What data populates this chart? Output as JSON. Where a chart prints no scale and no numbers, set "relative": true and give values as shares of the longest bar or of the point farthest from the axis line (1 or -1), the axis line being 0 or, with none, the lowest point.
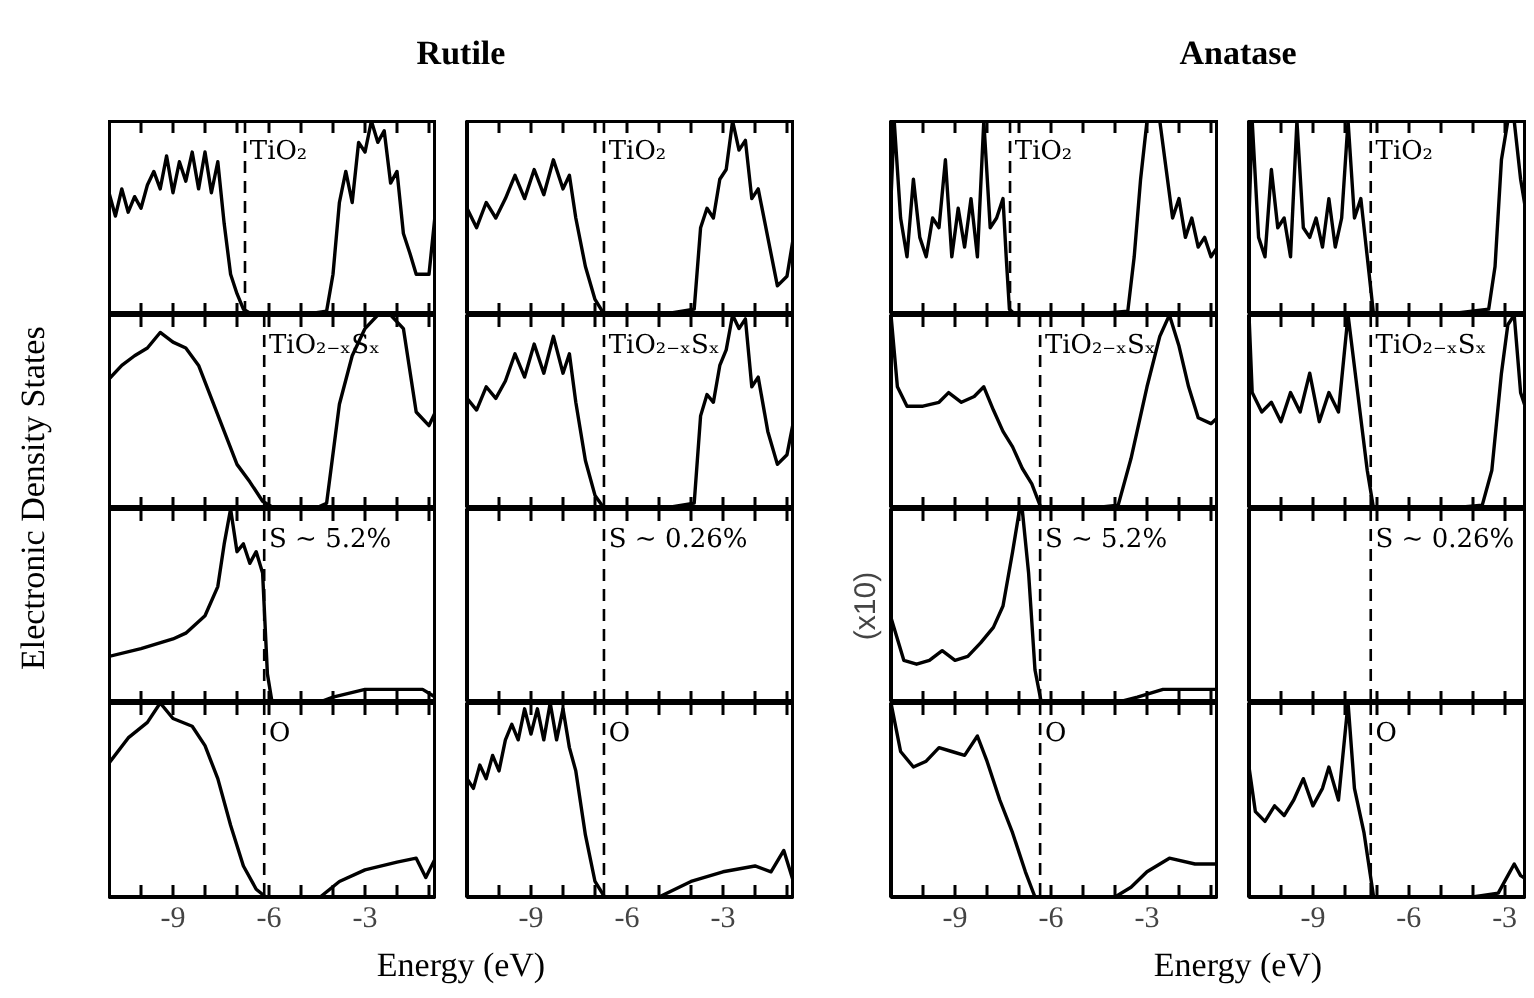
{
  "chart_data": [
    {
      "type": "line",
      "relative": true,
      "title": "Rutile",
      "ylabel": "Electronic Density States",
      "color": "#000000",
      "annotations": [
        "TiO₂"
      ],
      "xlim": [
        -11,
        -0.75
      ],
      "xticks": [
        {
          "value": -10,
          "label": null
        },
        -9,
        {
          "value": -8,
          "label": null
        },
        {
          "value": -7,
          "label": null
        },
        -6,
        {
          "value": -5,
          "label": null
        },
        {
          "value": -4,
          "label": null
        },
        -3,
        {
          "value": -2,
          "label": null
        },
        {
          "value": -1,
          "label": null
        }
      ],
      "tick_labels": false,
      "ref_lines": [
        {
          "axis": "x",
          "value": -6.75,
          "line_style": "dashed"
        }
      ],
      "x": [
        -11,
        -10.8,
        -10.6,
        -10.4,
        -10.2,
        -10,
        -9.8,
        -9.6,
        -9.4,
        -9.2,
        -9,
        -8.8,
        -8.6,
        -8.4,
        -8.2,
        -8,
        -7.8,
        -7.6,
        -7.4,
        -7.2,
        -7,
        -6.8,
        -6.5,
        -6,
        -5,
        -4.2,
        -4,
        -3.8,
        -3.6,
        -3.4,
        -3.2,
        -3,
        -2.8,
        -2.6,
        -2.4,
        -2.2,
        -2,
        -1.8,
        -1.6,
        -1.4,
        -1.2,
        -1,
        -0.8
      ],
      "values": [
        0.63,
        0.51,
        0.65,
        0.53,
        0.61,
        0.55,
        0.67,
        0.74,
        0.65,
        0.82,
        0.63,
        0.79,
        0.69,
        0.84,
        0.65,
        0.84,
        0.63,
        0.79,
        0.47,
        0.21,
        0.11,
        0.03,
        0,
        0,
        0,
        0.02,
        0.21,
        0.58,
        0.74,
        0.58,
        0.89,
        0.84,
        1,
        0.89,
        0.95,
        0.68,
        0.74,
        0.42,
        0.32,
        0.21,
        0.21,
        0.21,
        0.53
      ]
    },
    {
      "type": "line",
      "relative": true,
      "color": "#000000",
      "annotations": [
        "TiO₂"
      ],
      "xlim": [
        -11,
        -0.75
      ],
      "xticks": [
        {
          "value": -10,
          "label": null
        },
        -9,
        {
          "value": -8,
          "label": null
        },
        {
          "value": -7,
          "label": null
        },
        -6,
        {
          "value": -5,
          "label": null
        },
        {
          "value": -4,
          "label": null
        },
        -3,
        {
          "value": -2,
          "label": null
        },
        {
          "value": -1,
          "label": null
        }
      ],
      "tick_labels": false,
      "ref_lines": [
        {
          "axis": "x",
          "value": -6.72,
          "line_style": "dashed"
        }
      ],
      "x": [
        -11,
        -10.7,
        -10.4,
        -10.1,
        -9.8,
        -9.5,
        -9.2,
        -8.9,
        -8.6,
        -8.3,
        -8,
        -7.8,
        -7.6,
        -7.3,
        -7,
        -6.7,
        -5,
        -3.9,
        -3.7,
        -3.5,
        -3.3,
        -3.1,
        -2.9,
        -2.7,
        -2.5,
        -2.3,
        -2.1,
        -1.9,
        -1.6,
        -1.3,
        -1,
        -0.8
      ],
      "values": [
        0.55,
        0.45,
        0.58,
        0.5,
        0.6,
        0.72,
        0.6,
        0.75,
        0.62,
        0.8,
        0.65,
        0.72,
        0.5,
        0.25,
        0.08,
        0,
        0,
        0.03,
        0.45,
        0.55,
        0.5,
        0.7,
        0.75,
        1,
        0.85,
        0.9,
        0.6,
        0.65,
        0.4,
        0.15,
        0.2,
        0.4
      ]
    },
    {
      "type": "line",
      "relative": true,
      "title": "Anatase",
      "color": "#000000",
      "annotations": [
        "TiO₂"
      ],
      "xlim": [
        -11,
        -0.75
      ],
      "xticks": [
        {
          "value": -10,
          "label": null
        },
        -9,
        {
          "value": -8,
          "label": null
        },
        {
          "value": -7,
          "label": null
        },
        -6,
        {
          "value": -5,
          "label": null
        },
        {
          "value": -4,
          "label": null
        },
        -3,
        {
          "value": -2,
          "label": null
        },
        {
          "value": -1,
          "label": null
        }
      ],
      "tick_labels": false,
      "ref_lines": [
        {
          "axis": "x",
          "value": -7.28,
          "line_style": "dashed"
        }
      ],
      "x": [
        -11,
        -10.9,
        -10.7,
        -10.5,
        -10.3,
        -10.1,
        -9.9,
        -9.7,
        -9.5,
        -9.3,
        -9.1,
        -8.9,
        -8.7,
        -8.5,
        -8.3,
        -8.1,
        -7.9,
        -7.7,
        -7.5,
        -7.4,
        -7.3,
        -7.1,
        -5,
        -3.6,
        -3.4,
        -3.2,
        -3.0,
        -2.8,
        -2.6,
        -2.4,
        -2.2,
        -2.0,
        -1.8,
        -1.6,
        -1.4,
        -1.2,
        -1.0,
        -0.8
      ],
      "values": [
        0.6,
        1.0,
        0.5,
        0.3,
        0.7,
        0.4,
        0.3,
        0.5,
        0.45,
        0.8,
        0.3,
        0.55,
        0.35,
        0.6,
        0.3,
        1.0,
        0.45,
        0.5,
        0.6,
        0.3,
        0.03,
        0,
        0,
        0.02,
        0.3,
        0.7,
        1.0,
        1.0,
        1.0,
        0.75,
        0.5,
        0.6,
        0.4,
        0.5,
        0.35,
        0.4,
        0.3,
        0.35
      ]
    },
    {
      "type": "line",
      "relative": true,
      "color": "#000000",
      "annotations": [
        "TiO₂"
      ],
      "xlim": [
        -11,
        -2.3
      ],
      "xticks": [
        {
          "value": -10,
          "label": null
        },
        -9,
        {
          "value": -8,
          "label": null
        },
        {
          "value": -7,
          "label": null
        },
        -6,
        {
          "value": -5,
          "label": null
        },
        {
          "value": -4,
          "label": null
        },
        -3
      ],
      "tick_labels": false,
      "ref_lines": [
        {
          "axis": "x",
          "value": -7.19,
          "line_style": "dashed"
        }
      ],
      "x": [
        -11,
        -10.9,
        -10.7,
        -10.5,
        -10.3,
        -10.1,
        -9.9,
        -9.7,
        -9.5,
        -9.3,
        -9.1,
        -8.9,
        -8.7,
        -8.5,
        -8.3,
        -8.1,
        -7.9,
        -7.7,
        -7.5,
        -7.3,
        -7.1,
        -5,
        -3.5,
        -3.3,
        -3.1,
        -2.9,
        -2.7,
        -2.5,
        -2.3
      ],
      "values": [
        0.5,
        1.0,
        0.4,
        0.3,
        0.75,
        0.45,
        0.5,
        0.3,
        1.0,
        0.45,
        0.4,
        0.5,
        0.35,
        0.6,
        0.35,
        0.5,
        1.0,
        0.5,
        0.6,
        0.3,
        0,
        0,
        0.03,
        0.25,
        0.8,
        1.0,
        1.0,
        0.7,
        0.5
      ]
    },
    {
      "type": "line",
      "relative": true,
      "color": "#000000",
      "annotations": [
        "TiO₂₋ₓSₓ"
      ],
      "xlim": [
        -11,
        -0.75
      ],
      "xticks": [
        {
          "value": -10,
          "label": null
        },
        -9,
        {
          "value": -8,
          "label": null
        },
        {
          "value": -7,
          "label": null
        },
        -6,
        {
          "value": -5,
          "label": null
        },
        {
          "value": -4,
          "label": null
        },
        -3,
        {
          "value": -2,
          "label": null
        },
        {
          "value": -1,
          "label": null
        }
      ],
      "tick_labels": false,
      "ref_lines": [
        {
          "axis": "x",
          "value": -6.15,
          "line_style": "dashed"
        }
      ],
      "x": [
        -11,
        -10.6,
        -10.2,
        -9.8,
        -9.4,
        -9.0,
        -8.6,
        -8.2,
        -7.8,
        -7.4,
        -7.0,
        -6.6,
        -6.2,
        -5.8,
        -5.4,
        -5.0,
        -4.6,
        -4.2,
        -3.8,
        -3.4,
        -3.0,
        -2.6,
        -2.2,
        -1.8,
        -1.4,
        -1.0,
        -0.8
      ],
      "values": [
        0.67,
        0.74,
        0.79,
        0.83,
        0.91,
        0.86,
        0.83,
        0.74,
        0.57,
        0.4,
        0.23,
        0.14,
        0.04,
        0,
        0,
        0,
        0,
        0.03,
        0.54,
        0.79,
        0.93,
        1,
        1,
        0.93,
        0.5,
        0.43,
        0.5
      ]
    },
    {
      "type": "line",
      "relative": true,
      "color": "#000000",
      "annotations": [
        "TiO₂₋ₓSₓ"
      ],
      "xlim": [
        -11,
        -0.75
      ],
      "xticks": [
        {
          "value": -10,
          "label": null
        },
        -9,
        {
          "value": -8,
          "label": null
        },
        {
          "value": -7,
          "label": null
        },
        -6,
        {
          "value": -5,
          "label": null
        },
        {
          "value": -4,
          "label": null
        },
        -3,
        {
          "value": -2,
          "label": null
        },
        {
          "value": -1,
          "label": null
        }
      ],
      "tick_labels": false,
      "ref_lines": [
        {
          "axis": "x",
          "value": -6.72,
          "line_style": "dashed"
        }
      ],
      "x": [
        -11,
        -10.7,
        -10.4,
        -10.1,
        -9.8,
        -9.5,
        -9.2,
        -8.9,
        -8.6,
        -8.3,
        -8,
        -7.8,
        -7.6,
        -7.3,
        -7,
        -6.7,
        -5,
        -3.9,
        -3.7,
        -3.5,
        -3.3,
        -3.1,
        -2.9,
        -2.7,
        -2.5,
        -2.3,
        -2.1,
        -1.9,
        -1.6,
        -1.3,
        -1,
        -0.8
      ],
      "values": [
        0.57,
        0.51,
        0.63,
        0.57,
        0.66,
        0.8,
        0.68,
        0.85,
        0.7,
        0.89,
        0.7,
        0.8,
        0.55,
        0.25,
        0.07,
        0,
        0,
        0.03,
        0.48,
        0.59,
        0.55,
        0.74,
        0.82,
        1,
        0.93,
        0.98,
        0.63,
        0.68,
        0.4,
        0.23,
        0.28,
        0.45
      ]
    },
    {
      "type": "line",
      "relative": true,
      "color": "#000000",
      "annotations": [
        "TiO₂₋ₓSₓ"
      ],
      "xlim": [
        -11,
        -0.75
      ],
      "xticks": [
        {
          "value": -10,
          "label": null
        },
        -9,
        {
          "value": -8,
          "label": null
        },
        {
          "value": -7,
          "label": null
        },
        -6,
        {
          "value": -5,
          "label": null
        },
        {
          "value": -4,
          "label": null
        },
        -3,
        {
          "value": -2,
          "label": null
        },
        {
          "value": -1,
          "label": null
        }
      ],
      "tick_labels": false,
      "ref_lines": [
        {
          "axis": "x",
          "value": -6.34,
          "line_style": "dashed"
        }
      ],
      "x": [
        -11,
        -10.8,
        -10.5,
        -10,
        -9.5,
        -9.2,
        -8.8,
        -8.4,
        -8.1,
        -7.8,
        -7.5,
        -7.2,
        -6.9,
        -6.6,
        -6.3,
        -5,
        -3.9,
        -3.5,
        -3.0,
        -2.6,
        -2.3,
        -2.0,
        -1.7,
        -1.4,
        -1.0,
        -0.8
      ],
      "values": [
        1,
        0.63,
        0.53,
        0.53,
        0.55,
        0.6,
        0.55,
        0.58,
        0.63,
        0.51,
        0.4,
        0.32,
        0.21,
        0.13,
        0,
        0,
        0.02,
        0.26,
        0.63,
        0.89,
        1,
        0.84,
        0.63,
        0.47,
        0.44,
        0.47
      ]
    },
    {
      "type": "line",
      "relative": true,
      "color": "#000000",
      "annotations": [
        "TiO₂₋ₓSₓ"
      ],
      "xlim": [
        -11,
        -2.3
      ],
      "xticks": [
        {
          "value": -10,
          "label": null
        },
        -9,
        {
          "value": -8,
          "label": null
        },
        {
          "value": -7,
          "label": null
        },
        -6,
        {
          "value": -5,
          "label": null
        },
        {
          "value": -4,
          "label": null
        },
        -3
      ],
      "tick_labels": false,
      "ref_lines": [
        {
          "axis": "x",
          "value": -7.19,
          "line_style": "dashed"
        }
      ],
      "x": [
        -11,
        -10.9,
        -10.6,
        -10.3,
        -10,
        -9.7,
        -9.4,
        -9.1,
        -8.8,
        -8.5,
        -8.2,
        -7.9,
        -7.6,
        -7.3,
        -7.1,
        -5,
        -3.7,
        -3.4,
        -3.1,
        -2.9,
        -2.7,
        -2.5,
        -2.3
      ],
      "values": [
        1.0,
        0.6,
        0.5,
        0.55,
        0.45,
        0.6,
        0.5,
        0.7,
        0.45,
        0.6,
        0.5,
        1.0,
        0.6,
        0.2,
        0,
        0,
        0.02,
        0.2,
        0.7,
        0.95,
        1.0,
        0.6,
        0.5
      ]
    },
    {
      "type": "line",
      "relative": true,
      "color": "#000000",
      "annotations": [
        "S ~ 5.2%"
      ],
      "xlim": [
        -11,
        -0.75
      ],
      "xticks": [
        {
          "value": -10,
          "label": null
        },
        -9,
        {
          "value": -8,
          "label": null
        },
        {
          "value": -7,
          "label": null
        },
        -6,
        {
          "value": -5,
          "label": null
        },
        {
          "value": -4,
          "label": null
        },
        -3,
        {
          "value": -2,
          "label": null
        },
        {
          "value": -1,
          "label": null
        }
      ],
      "tick_labels": false,
      "ref_lines": [
        {
          "axis": "x",
          "value": -6.15,
          "line_style": "dashed"
        }
      ],
      "x": [
        -11,
        -10,
        -9,
        -8.6,
        -8,
        -7.6,
        -7.4,
        -7.2,
        -7.0,
        -6.8,
        -6.6,
        -6.4,
        -6.2,
        -6.05,
        -5.9,
        -4.5,
        -4,
        -3,
        -2,
        -1.2,
        -0.8
      ],
      "values": [
        0.24,
        0.28,
        0.33,
        0.36,
        0.45,
        0.6,
        0.82,
        1,
        0.78,
        0.82,
        0.72,
        0.78,
        0.67,
        0.15,
        0,
        0,
        0.03,
        0.07,
        0.07,
        0.07,
        0.03
      ]
    },
    {
      "type": "other",
      "annotations": [
        "S ~ 0.26%"
      ]
    },
    {
      "type": "line",
      "relative": true,
      "ylabel": "(x10)",
      "color": "#000000",
      "annotations": [
        "S ~ 5.2%"
      ],
      "xlim": [
        -11,
        -0.75
      ],
      "xticks": [
        {
          "value": -10,
          "label": null
        },
        -9,
        {
          "value": -8,
          "label": null
        },
        {
          "value": -7,
          "label": null
        },
        -6,
        {
          "value": -5,
          "label": null
        },
        {
          "value": -4,
          "label": null
        },
        -3,
        {
          "value": -2,
          "label": null
        },
        {
          "value": -1,
          "label": null
        }
      ],
      "tick_labels": false,
      "ref_lines": [
        {
          "axis": "x",
          "value": -6.34,
          "line_style": "dashed"
        }
      ],
      "x": [
        -11,
        -10.6,
        -10.2,
        -9.8,
        -9.4,
        -9,
        -8.6,
        -8.2,
        -7.8,
        -7.5,
        -7.2,
        -7.0,
        -6.9,
        -6.7,
        -6.5,
        -6.3,
        -4,
        -3.3,
        -2.5,
        -1.5,
        -0.8
      ],
      "values": [
        0.44,
        0.22,
        0.2,
        0.22,
        0.27,
        0.22,
        0.24,
        0.31,
        0.39,
        0.5,
        0.78,
        0.98,
        1,
        0.67,
        0.17,
        0,
        0,
        0.03,
        0.07,
        0.07,
        0.07
      ]
    },
    {
      "type": "other",
      "annotations": [
        "S ~ 0.26%"
      ]
    },
    {
      "type": "line",
      "relative": true,
      "xlabel": "Energy (eV)",
      "color": "#000000",
      "annotations": [
        "O"
      ],
      "xlim": [
        -11,
        -0.75
      ],
      "xticks": [
        {
          "value": -10,
          "label": null
        },
        -9,
        {
          "value": -8,
          "label": null
        },
        {
          "value": -7,
          "label": null
        },
        -6,
        {
          "value": -5,
          "label": null
        },
        {
          "value": -4,
          "label": null
        },
        -3,
        {
          "value": -2,
          "label": null
        },
        {
          "value": -1,
          "label": null
        }
      ],
      "tick_labels": "x",
      "ref_lines": [
        {
          "axis": "x",
          "value": -6.15,
          "line_style": "dashed"
        }
      ],
      "x": [
        -11,
        -10.4,
        -9.8,
        -9.4,
        -9,
        -8.4,
        -8,
        -7.6,
        -7.2,
        -6.8,
        -6.4,
        -6.1,
        -4.4,
        -3.8,
        -3,
        -2,
        -1.4,
        -1.1,
        -0.8
      ],
      "values": [
        0.69,
        0.82,
        0.9,
        1,
        0.92,
        0.88,
        0.78,
        0.61,
        0.37,
        0.16,
        0.04,
        0,
        0,
        0.08,
        0.14,
        0.18,
        0.2,
        0.1,
        0.2
      ]
    },
    {
      "type": "line",
      "relative": true,
      "color": "#000000",
      "annotations": [
        "O"
      ],
      "xlim": [
        -11,
        -0.75
      ],
      "xticks": [
        {
          "value": -10,
          "label": null
        },
        -9,
        {
          "value": -8,
          "label": null
        },
        {
          "value": -7,
          "label": null
        },
        -6,
        {
          "value": -5,
          "label": null
        },
        {
          "value": -4,
          "label": null
        },
        -3,
        {
          "value": -2,
          "label": null
        },
        {
          "value": -1,
          "label": null
        }
      ],
      "tick_labels": "x",
      "ref_lines": [
        {
          "axis": "x",
          "value": -6.72,
          "line_style": "dashed"
        }
      ],
      "x": [
        -11,
        -10.8,
        -10.6,
        -10.4,
        -10.2,
        -10,
        -9.8,
        -9.6,
        -9.4,
        -9.2,
        -9,
        -8.8,
        -8.6,
        -8.4,
        -8.2,
        -8,
        -7.8,
        -7.6,
        -7.3,
        -7,
        -6.7,
        -5,
        -4,
        -3,
        -2,
        -1.5,
        -1.1,
        -0.8
      ],
      "values": [
        0.61,
        0.56,
        0.68,
        0.61,
        0.73,
        0.65,
        0.81,
        0.89,
        0.81,
        0.97,
        0.84,
        0.97,
        0.81,
        1,
        0.81,
        0.97,
        0.77,
        0.65,
        0.32,
        0.08,
        0,
        0,
        0.08,
        0.13,
        0.16,
        0.13,
        0.24,
        0.08
      ]
    },
    {
      "type": "line",
      "relative": true,
      "xlabel": "Energy (eV)",
      "color": "#000000",
      "annotations": [
        "O"
      ],
      "xlim": [
        -11,
        -0.75
      ],
      "xticks": [
        {
          "value": -10,
          "label": null
        },
        -9,
        {
          "value": -8,
          "label": null
        },
        {
          "value": -7,
          "label": null
        },
        -6,
        {
          "value": -5,
          "label": null
        },
        {
          "value": -4,
          "label": null
        },
        -3,
        {
          "value": -2,
          "label": null
        },
        {
          "value": -1,
          "label": null
        }
      ],
      "tick_labels": "x",
      "ref_lines": [
        {
          "axis": "x",
          "value": -6.34,
          "line_style": "dashed"
        }
      ],
      "x": [
        -11,
        -10.7,
        -10.3,
        -9.9,
        -9.5,
        -9.1,
        -8.7,
        -8.3,
        -8.0,
        -7.6,
        -7.2,
        -6.8,
        -6.5,
        -4,
        -3.5,
        -3,
        -2.3,
        -1.5,
        -0.8
      ],
      "values": [
        1,
        0.75,
        0.67,
        0.7,
        0.77,
        0.75,
        0.73,
        0.83,
        0.7,
        0.5,
        0.33,
        0.13,
        0,
        0,
        0.05,
        0.13,
        0.2,
        0.17,
        0.17
      ]
    },
    {
      "type": "line",
      "relative": true,
      "color": "#000000",
      "annotations": [
        "O"
      ],
      "xlim": [
        -11,
        -2.3
      ],
      "xticks": [
        {
          "value": -10,
          "label": null
        },
        -9,
        {
          "value": -8,
          "label": null
        },
        {
          "value": -7,
          "label": null
        },
        -6,
        {
          "value": -5,
          "label": null
        },
        {
          "value": -4,
          "label": null
        },
        -3
      ],
      "tick_labels": "x",
      "ref_lines": [
        {
          "axis": "x",
          "value": -7.19,
          "line_style": "dashed"
        }
      ],
      "x": [
        -11,
        -10.8,
        -10.5,
        -10.2,
        -9.9,
        -9.6,
        -9.3,
        -9.0,
        -8.7,
        -8.5,
        -8.2,
        -7.9,
        -7.7,
        -7.4,
        -7.1,
        -4,
        -3.2,
        -2.9,
        -2.7,
        -2.5,
        -2.3
      ],
      "values": [
        0.67,
        0.44,
        0.39,
        0.47,
        0.42,
        0.5,
        0.61,
        0.47,
        0.56,
        0.67,
        0.5,
        1,
        0.56,
        0.33,
        0,
        0,
        0.02,
        0.11,
        0.17,
        0.11,
        0.09
      ]
    }
  ]
}
